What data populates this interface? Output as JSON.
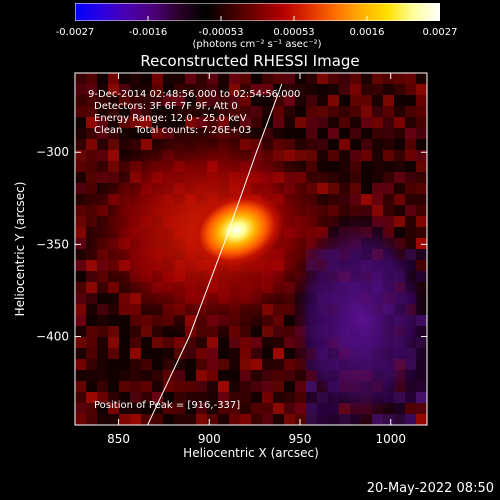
{
  "colorbar": {
    "ticks": [
      "-0.0027",
      "-0.0016",
      "-0.00053",
      "0.00053",
      "0.0016",
      "0.0027"
    ],
    "units": "(photons cm⁻² s⁻¹ asec⁻²)",
    "colors": [
      "#0000ff",
      "#2a00e0",
      "#4a00b0",
      "#4b0078",
      "#2a0028",
      "#000000",
      "#3a0000",
      "#7a0000",
      "#b40000",
      "#e03000",
      "#ff7000",
      "#ffb000",
      "#ffe000",
      "#ffffa0",
      "#ffffff"
    ]
  },
  "title": "Reconstructed RHESSI Image",
  "annotations": {
    "time_range": "9-Dec-2014 02:48:56.000 to 02:54:56.000",
    "detectors": "Detectors: 3F 6F 7F 9F, Att 0",
    "energy_range": "Energy Range: 12.0 - 25.0 keV",
    "method_counts": "Clean    Total counts: 7.26E+03",
    "peak_position": "Position of Peak = [916,-337]"
  },
  "footer": {
    "date": "20-May-2022 08:50"
  },
  "chart_data": {
    "type": "heatmap",
    "title": "Reconstructed RHESSI Image",
    "xlabel": "Heliocentric X (arcsec)",
    "ylabel": "Heliocentric Y (arcsec)",
    "xlim": [
      826,
      1020
    ],
    "ylim": [
      -448,
      -257
    ],
    "x_ticks": [
      850,
      900,
      950,
      1000
    ],
    "y_ticks": [
      -300,
      -350,
      -400
    ],
    "x_tick_labels": [
      "850",
      "900",
      "950",
      "1000"
    ],
    "y_tick_labels": [
      "−300",
      "−350",
      "−400"
    ],
    "value_range": [
      -0.0027,
      0.0027
    ],
    "peak": {
      "x": 916,
      "y": -337,
      "value": 0.0027
    },
    "limb_curve": [
      [
        866,
        -448
      ],
      [
        889,
        -400
      ],
      [
        908,
        -350
      ],
      [
        926,
        -300
      ],
      [
        940,
        -263
      ]
    ],
    "limb_color": "#ffffff"
  }
}
